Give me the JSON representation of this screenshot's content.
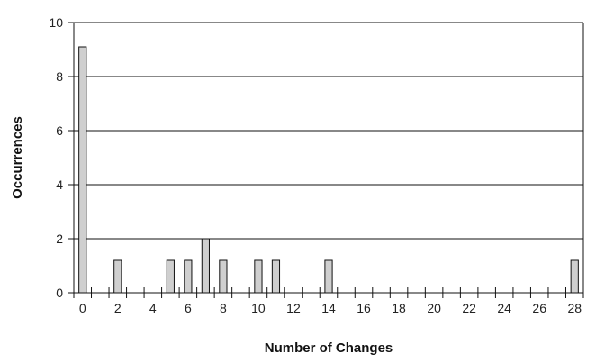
{
  "chart_data": {
    "type": "bar",
    "title": "",
    "xlabel": "Number of Changes",
    "ylabel": "Occurrences",
    "xlim": [
      -0.5,
      28.5
    ],
    "ylim": [
      0,
      10
    ],
    "x_ticks": [
      0,
      1,
      2,
      3,
      4,
      5,
      6,
      7,
      8,
      9,
      10,
      11,
      12,
      13,
      14,
      15,
      16,
      17,
      18,
      19,
      20,
      21,
      22,
      23,
      24,
      25,
      26,
      27,
      28
    ],
    "x_tick_labels": [
      "0",
      "2",
      "4",
      "6",
      "8",
      "10",
      "12",
      "14",
      "16",
      "18",
      "20",
      "22",
      "24",
      "26",
      "28"
    ],
    "y_tick_labels": [
      "0",
      "2",
      "4",
      "6",
      "8",
      "10"
    ],
    "grid": "horizontal",
    "legend": "none",
    "x": [
      0,
      2,
      5,
      6,
      7,
      8,
      10,
      11,
      14,
      28
    ],
    "values": [
      9.1,
      1.2,
      1.2,
      1.2,
      2.0,
      1.2,
      1.2,
      1.2,
      1.2,
      1.2
    ],
    "colors": {
      "bar_fill": "#cfcfcf",
      "bar_stroke": "#111111",
      "axis": "#111111",
      "grid": "#111111"
    }
  }
}
